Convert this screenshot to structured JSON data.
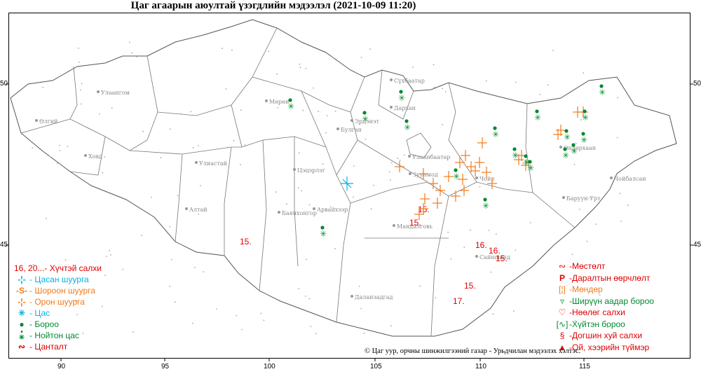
{
  "title": "Цаг агаарын аюултай үзэгдлийн мэдээлэл (2021-10-09 11:20)",
  "axes": {
    "x_ticks": [
      "90",
      "95",
      "100",
      "105",
      "110",
      "115"
    ],
    "y_ticks_left": [
      "50",
      "45"
    ],
    "y_ticks_right": [
      "50",
      "45"
    ]
  },
  "place_names": [
    "Улаангом",
    "Өлгий",
    "Ховд",
    "Мөрөн",
    "Эрдэнэт",
    "Булган",
    "Сүхбаатар",
    "Дархан",
    "Улаанбаатар",
    "Зуунмод",
    "Чойр",
    "Улиастай",
    "Алтай",
    "Цэцэрлэг",
    "Баянхонгор",
    "Арвайхээр",
    "Мандалговь",
    "Сайншанд",
    "Даланзадгад",
    "Баруун-Урт",
    "Чойбалсан",
    "Өндөрхаан"
  ],
  "wind_speed_labels": [
    "15",
    "15",
    "15",
    "16",
    "16",
    "15",
    "15",
    "17"
  ],
  "legend_left": [
    {
      "symbol": "16, 20...",
      "label": " - Хүчтэй салхи",
      "color": "#e00000"
    },
    {
      "symbol": "blizzard-icon",
      "label": " - Цасан шуурга",
      "color": "#00b4e6"
    },
    {
      "symbol": "dust-storm-icon",
      "label": " - Шороон шуурга",
      "color": "#f07b1a"
    },
    {
      "symbol": "storm-icon",
      "label": " - Орон шуурга",
      "color": "#f07b1a"
    },
    {
      "symbol": "snow-icon",
      "label": " - Цас",
      "color": "#00b4e6"
    },
    {
      "symbol": "rain-icon",
      "label": " - Бороо",
      "color": "#008a2e"
    },
    {
      "symbol": "sleet-icon",
      "label": " - Нойтон цас",
      "color": "#008a2e"
    },
    {
      "symbol": "thunder-icon",
      "label": " - Цанталт",
      "color": "#e00000"
    }
  ],
  "legend_right": [
    {
      "symbol": "glaze-icon",
      "label": "-Мөстөлт",
      "color": "#e00000"
    },
    {
      "symbol": "pressure-icon",
      "label": "-Даралтын өөрчлөлт",
      "color": "#e00000"
    },
    {
      "symbol": "hail-icon",
      "label": "-Мөндөр",
      "color": "#f07b1a"
    },
    {
      "symbol": "shower-icon",
      "label": "-Ширүүн аадар бороо",
      "color": "#008a2e"
    },
    {
      "symbol": "gust-icon",
      "label": "-Нөөлөг салхи",
      "color": "#e00000"
    },
    {
      "symbol": "cold-rain-icon",
      "label": "-Хүйтэн бороо",
      "color": "#008a2e"
    },
    {
      "symbol": "whirlwind-icon",
      "label": "-Догшин хуй салхи",
      "color": "#e00000"
    },
    {
      "symbol": "fire-icon",
      "label": "-Ой, хээрийн түймэр",
      "color": "#e00000"
    }
  ],
  "credit": "© Цаг уур, орчны шинжилгээний газар - Урьдчилан мэдээлэх хэлтэс.",
  "colors": {
    "wind": "#e00000",
    "storm": "#f07b1a",
    "rain": "#008a2e",
    "snow": "#00b4e6"
  }
}
